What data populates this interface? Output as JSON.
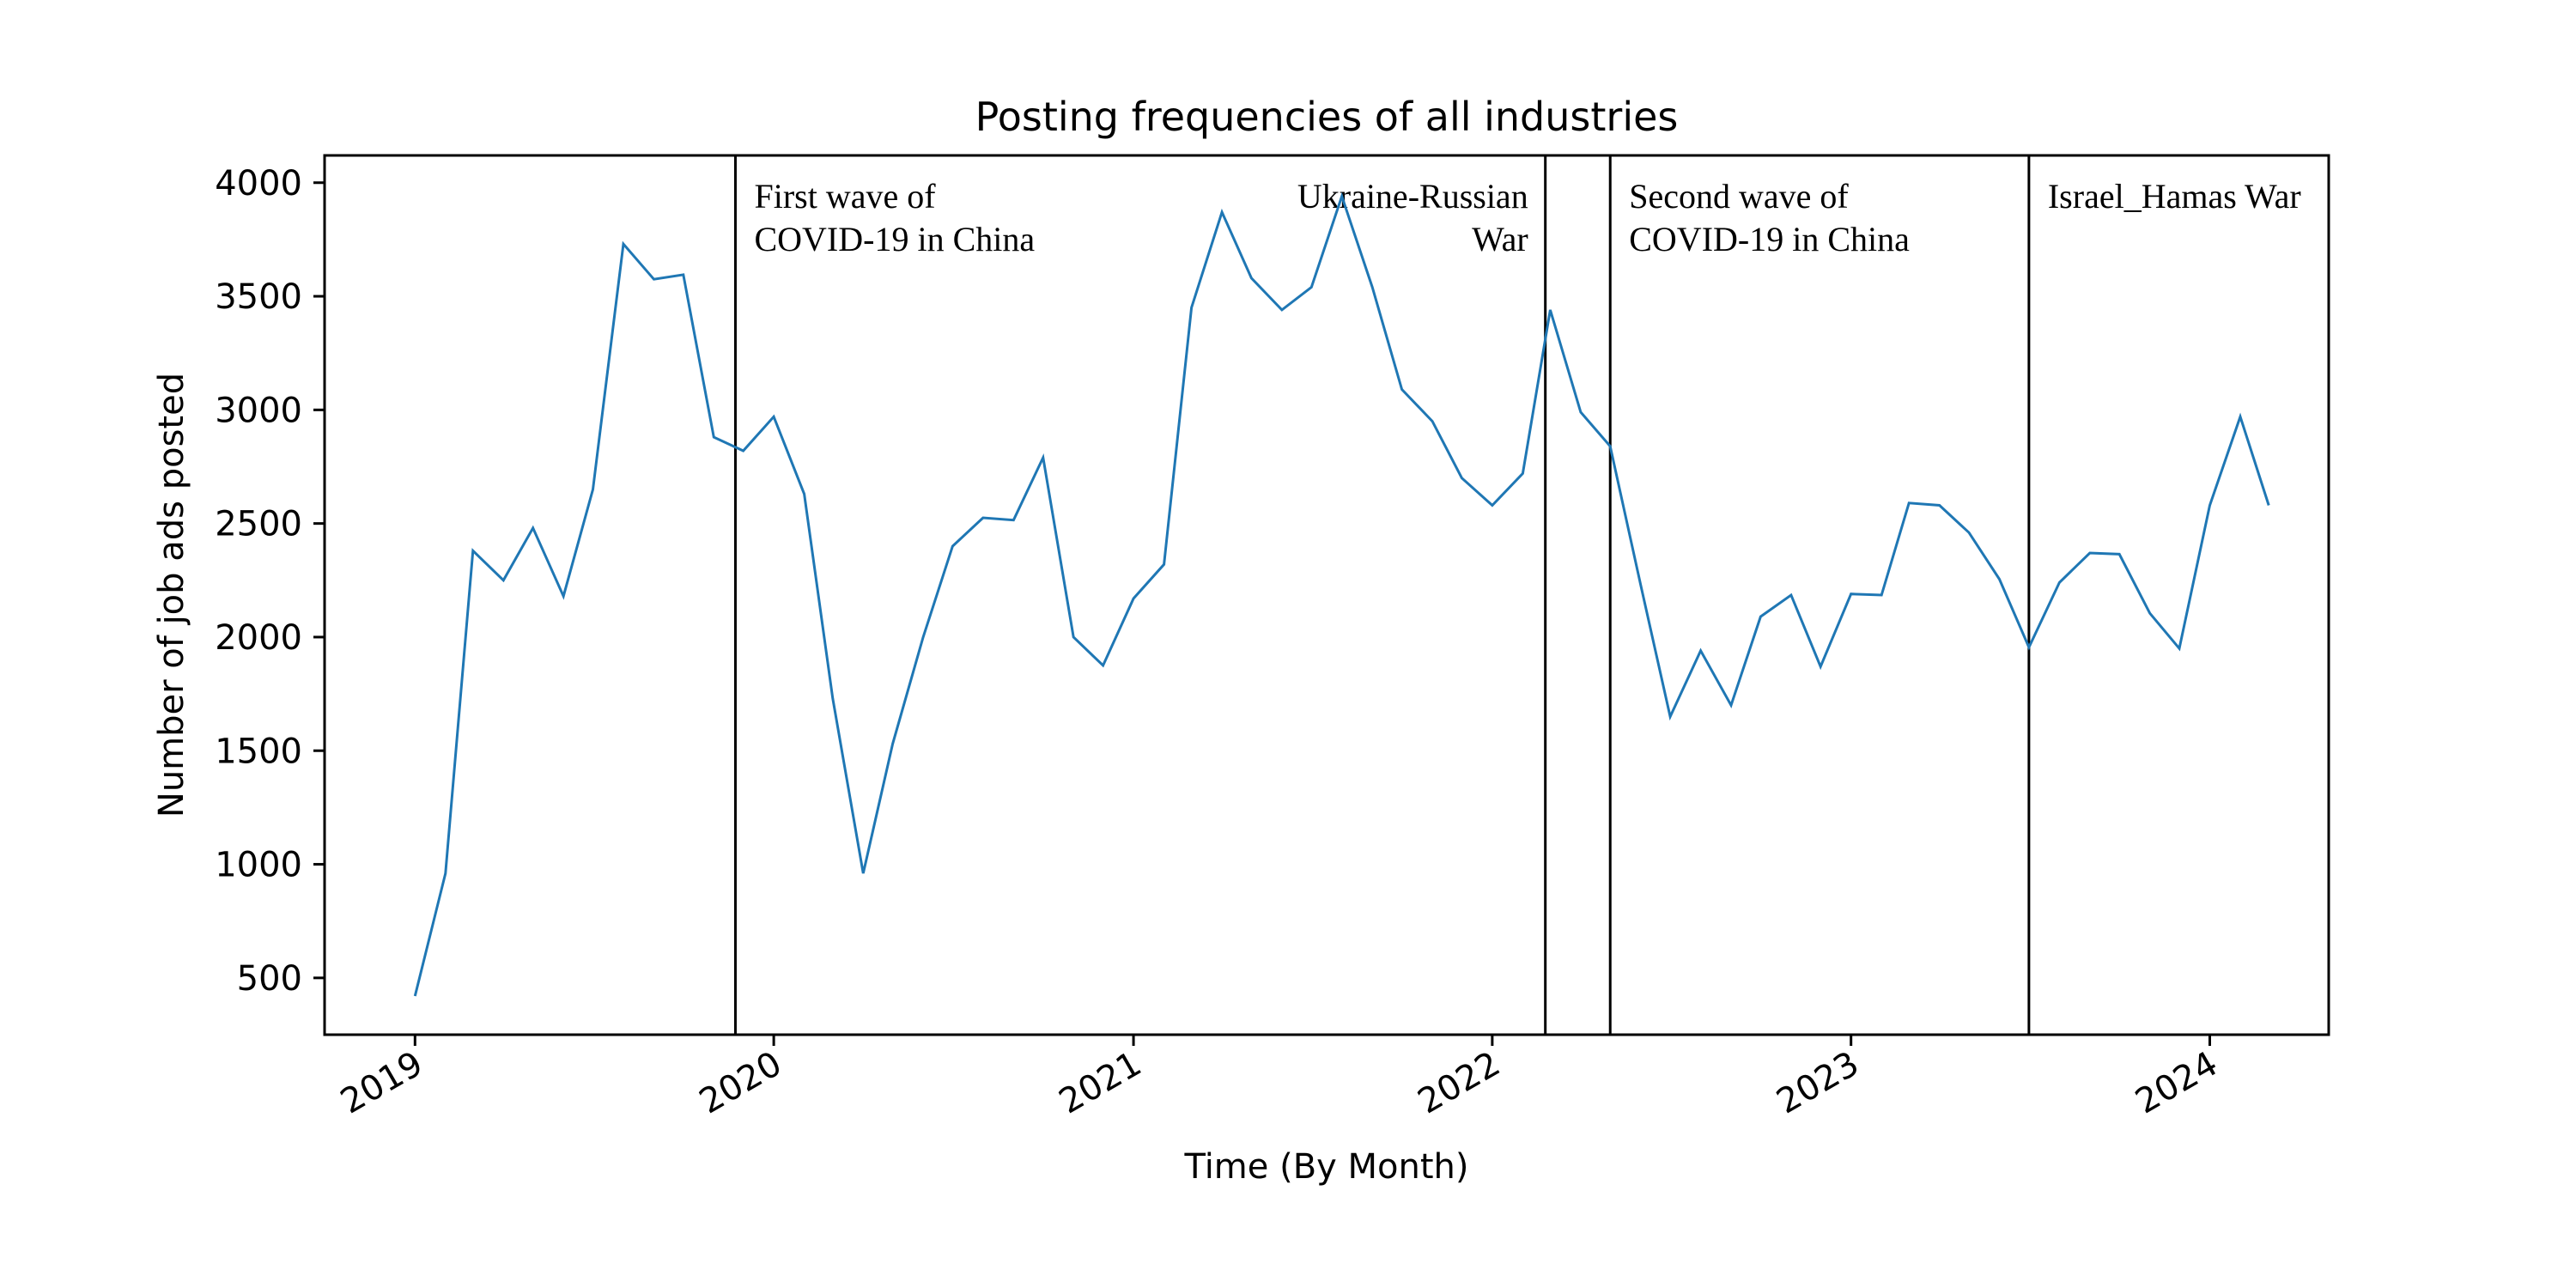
{
  "chart_data": {
    "type": "line",
    "title": "Posting frequencies of all industries",
    "xlabel": "Time (By Month)",
    "ylabel": "Number of job ads posted",
    "x_start": "2019-01",
    "x_end": "2024-03",
    "xlim": [
      "2018-10",
      "2024-05"
    ],
    "ylim": [
      250,
      4120
    ],
    "x_ticks": [
      "2019",
      "2020",
      "2021",
      "2022",
      "2023",
      "2024"
    ],
    "y_ticks": [
      500,
      1000,
      1500,
      2000,
      2500,
      3000,
      3500,
      4000
    ],
    "grid": false,
    "line_color": "#1f77b4",
    "series": [
      {
        "values": [
          420,
          960,
          2380,
          2250,
          2480,
          2180,
          2650,
          3730,
          3575,
          3595,
          2880,
          2820,
          2970,
          2630,
          1730,
          960,
          1530,
          2000,
          2400,
          2525,
          2515,
          2790,
          2000,
          1875,
          2170,
          2320,
          3450,
          3870,
          3580,
          3440,
          3540,
          3940,
          3540,
          3090,
          2950,
          2700,
          2580,
          2720,
          3440,
          2990,
          2840,
          2230,
          1650,
          1940,
          1700,
          2090,
          2185,
          1870,
          2190,
          2185,
          2590,
          2580,
          2460,
          2255,
          1955,
          2240,
          2370,
          2365,
          2105,
          1950,
          2580,
          2970,
          2580
        ]
      }
    ],
    "events": [
      {
        "date": "2019-11-23",
        "label_lines": [
          "First wave of",
          "COVID-19 in China"
        ],
        "align": "start"
      },
      {
        "date": "2022-02-24",
        "label_lines": [
          "Ukraine-Russian",
          "War"
        ],
        "align": "end"
      },
      {
        "date": "2022-05-01",
        "label_lines": [
          "Second wave of",
          "COVID-19 in China"
        ],
        "align": "start"
      },
      {
        "date": "2023-07-01",
        "label_lines": [
          "Israel_Hamas War"
        ],
        "align": "start"
      }
    ]
  }
}
